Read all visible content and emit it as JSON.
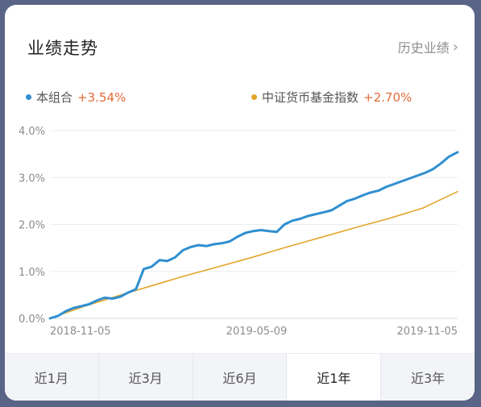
{
  "header": {
    "title": "业绩走势",
    "history_link": "历史业绩"
  },
  "legend": [
    {
      "name": "本组合",
      "value": "+3.54%",
      "color": "#2f8fd0"
    },
    {
      "name": "中证货币基金指数",
      "value": "+2.70%",
      "color": "#e3a52b"
    }
  ],
  "tabs": [
    {
      "label": "近1月",
      "active": false
    },
    {
      "label": "近3月",
      "active": false
    },
    {
      "label": "近6月",
      "active": false
    },
    {
      "label": "近1年",
      "active": true
    },
    {
      "label": "近3年",
      "active": false
    }
  ],
  "chart_data": {
    "type": "line",
    "title": "业绩走势",
    "xlabel": "",
    "ylabel": "",
    "ylim": [
      0,
      4
    ],
    "yticks": [
      "0.0%",
      "1.0%",
      "2.0%",
      "3.0%",
      "4.0%"
    ],
    "xticks": [
      "2018-11-05",
      "2019-05-09",
      "2019-11-05"
    ],
    "xrange": [
      "2018-11-05",
      "2019-11-05"
    ],
    "grid": true,
    "legend_position": "top",
    "series": [
      {
        "name": "本组合",
        "color": "#2f8fd0",
        "points": [
          [
            "2018-11-05",
            0.0
          ],
          [
            "2018-11-12",
            0.05
          ],
          [
            "2018-11-19",
            0.15
          ],
          [
            "2018-11-26",
            0.22
          ],
          [
            "2018-12-03",
            0.26
          ],
          [
            "2018-12-10",
            0.3
          ],
          [
            "2018-12-17",
            0.38
          ],
          [
            "2018-12-24",
            0.44
          ],
          [
            "2018-12-31",
            0.42
          ],
          [
            "2019-01-07",
            0.46
          ],
          [
            "2019-01-14",
            0.55
          ],
          [
            "2019-01-21",
            0.62
          ],
          [
            "2019-01-28",
            1.05
          ],
          [
            "2019-02-04",
            1.1
          ],
          [
            "2019-02-11",
            1.24
          ],
          [
            "2019-02-18",
            1.22
          ],
          [
            "2019-02-25",
            1.3
          ],
          [
            "2019-03-04",
            1.45
          ],
          [
            "2019-03-11",
            1.52
          ],
          [
            "2019-03-18",
            1.56
          ],
          [
            "2019-03-25",
            1.54
          ],
          [
            "2019-04-01",
            1.58
          ],
          [
            "2019-04-08",
            1.6
          ],
          [
            "2019-04-15",
            1.64
          ],
          [
            "2019-04-22",
            1.74
          ],
          [
            "2019-04-29",
            1.82
          ],
          [
            "2019-05-06",
            1.86
          ],
          [
            "2019-05-13",
            1.88
          ],
          [
            "2019-05-20",
            1.86
          ],
          [
            "2019-05-27",
            1.84
          ],
          [
            "2019-06-03",
            2.0
          ],
          [
            "2019-06-10",
            2.08
          ],
          [
            "2019-06-17",
            2.12
          ],
          [
            "2019-06-24",
            2.18
          ],
          [
            "2019-07-01",
            2.22
          ],
          [
            "2019-07-08",
            2.26
          ],
          [
            "2019-07-15",
            2.3
          ],
          [
            "2019-07-22",
            2.4
          ],
          [
            "2019-07-29",
            2.5
          ],
          [
            "2019-08-05",
            2.55
          ],
          [
            "2019-08-12",
            2.62
          ],
          [
            "2019-08-19",
            2.68
          ],
          [
            "2019-08-26",
            2.72
          ],
          [
            "2019-09-02",
            2.8
          ],
          [
            "2019-09-09",
            2.86
          ],
          [
            "2019-09-16",
            2.92
          ],
          [
            "2019-09-23",
            2.98
          ],
          [
            "2019-09-30",
            3.04
          ],
          [
            "2019-10-07",
            3.1
          ],
          [
            "2019-10-14",
            3.18
          ],
          [
            "2019-10-21",
            3.3
          ],
          [
            "2019-10-28",
            3.44
          ],
          [
            "2019-11-05",
            3.54
          ]
        ]
      },
      {
        "name": "中证货币基金指数",
        "color": "#e3a52b",
        "points": [
          [
            "2018-11-05",
            0.0
          ],
          [
            "2018-12-05",
            0.25
          ],
          [
            "2019-01-05",
            0.48
          ],
          [
            "2019-02-05",
            0.7
          ],
          [
            "2019-03-05",
            0.9
          ],
          [
            "2019-04-05",
            1.1
          ],
          [
            "2019-05-05",
            1.3
          ],
          [
            "2019-06-05",
            1.52
          ],
          [
            "2019-07-05",
            1.72
          ],
          [
            "2019-08-05",
            1.93
          ],
          [
            "2019-09-05",
            2.13
          ],
          [
            "2019-10-05",
            2.35
          ],
          [
            "2019-11-05",
            2.7
          ]
        ]
      }
    ]
  }
}
